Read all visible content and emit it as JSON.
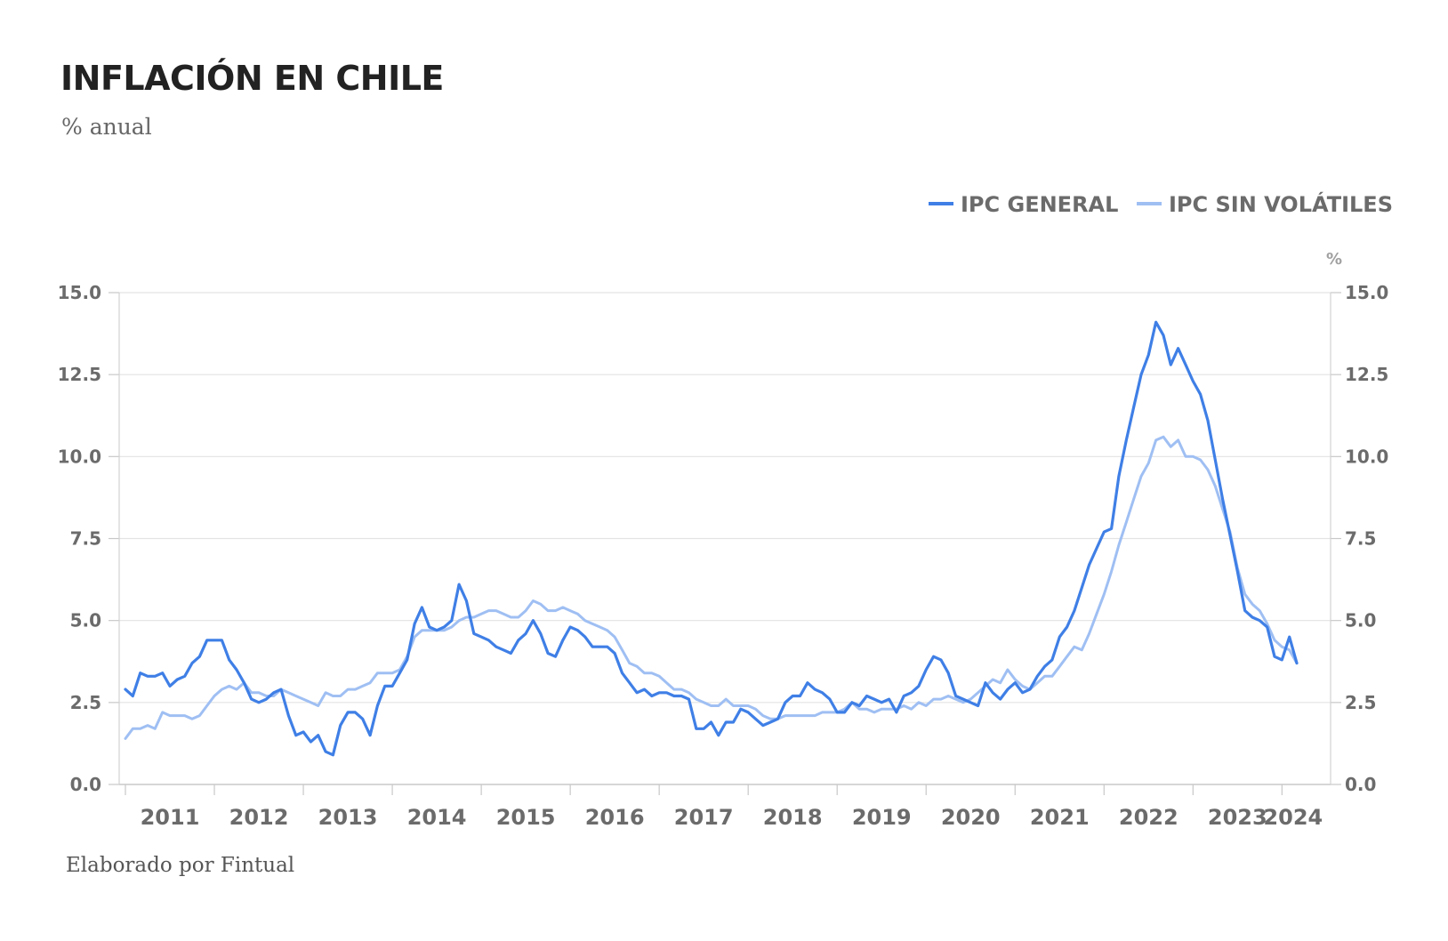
{
  "header": {
    "title": "INFLACIÓN EN CHILE",
    "subtitle": "% anual"
  },
  "footer": {
    "source": "Elaborado por Fintual"
  },
  "chart_data": {
    "type": "line",
    "title": "INFLACIÓN EN CHILE",
    "subtitle": "% anual",
    "ylabel": "%",
    "ylim": [
      0,
      15
    ],
    "y_ticks": [
      "0.0",
      "2.5",
      "5.0",
      "7.5",
      "10.0",
      "12.5",
      "15.0"
    ],
    "y_tick_values": [
      0,
      2.5,
      5,
      7.5,
      10,
      12.5,
      15
    ],
    "x_ticks": [
      "2011",
      "2012",
      "2013",
      "2014",
      "2015",
      "2016",
      "2017",
      "2018",
      "2019",
      "2020",
      "2021",
      "2022",
      "2023",
      "2024"
    ],
    "x_start": "2011-01",
    "x_end": "2024-03",
    "grid": true,
    "legend_position": "top-right",
    "series": [
      {
        "name": "IPC GENERAL",
        "color": "#3f7fe6",
        "values": [
          2.9,
          2.7,
          3.4,
          3.3,
          3.3,
          3.4,
          3.0,
          3.2,
          3.3,
          3.7,
          3.9,
          4.4,
          4.4,
          4.4,
          3.8,
          3.5,
          3.1,
          2.6,
          2.5,
          2.6,
          2.8,
          2.9,
          2.1,
          1.5,
          1.6,
          1.3,
          1.5,
          1.0,
          0.9,
          1.8,
          2.2,
          2.2,
          2.0,
          1.5,
          2.4,
          3.0,
          3.0,
          3.4,
          3.8,
          4.9,
          5.4,
          4.8,
          4.7,
          4.8,
          5.0,
          6.1,
          5.6,
          4.6,
          4.5,
          4.4,
          4.2,
          4.1,
          4.0,
          4.4,
          4.6,
          5.0,
          4.6,
          4.0,
          3.9,
          4.4,
          4.8,
          4.7,
          4.5,
          4.2,
          4.2,
          4.2,
          4.0,
          3.4,
          3.1,
          2.8,
          2.9,
          2.7,
          2.8,
          2.8,
          2.7,
          2.7,
          2.6,
          1.7,
          1.7,
          1.9,
          1.5,
          1.9,
          1.9,
          2.3,
          2.2,
          2.0,
          1.8,
          1.9,
          2.0,
          2.5,
          2.7,
          2.7,
          3.1,
          2.9,
          2.8,
          2.6,
          2.2,
          2.2,
          2.5,
          2.4,
          2.7,
          2.6,
          2.5,
          2.6,
          2.2,
          2.7,
          2.8,
          3.0,
          3.5,
          3.9,
          3.8,
          3.4,
          2.7,
          2.6,
          2.5,
          2.4,
          3.1,
          2.8,
          2.6,
          2.9,
          3.1,
          2.8,
          2.9,
          3.3,
          3.6,
          3.8,
          4.5,
          4.8,
          5.3,
          6.0,
          6.7,
          7.2,
          7.7,
          7.8,
          9.4,
          10.5,
          11.5,
          12.5,
          13.1,
          14.1,
          13.7,
          12.8,
          13.3,
          12.8,
          12.3,
          11.9,
          11.1,
          9.9,
          8.7,
          7.6,
          6.5,
          5.3,
          5.1,
          5.0,
          4.8,
          3.9,
          3.8,
          4.5,
          3.7
        ]
      },
      {
        "name": "IPC SIN VOLÁTILES",
        "color": "#9fbff3",
        "values": [
          1.4,
          1.7,
          1.7,
          1.8,
          1.7,
          2.2,
          2.1,
          2.1,
          2.1,
          2.0,
          2.1,
          2.4,
          2.7,
          2.9,
          3.0,
          2.9,
          3.1,
          2.8,
          2.8,
          2.7,
          2.7,
          2.9,
          2.8,
          2.7,
          2.6,
          2.5,
          2.4,
          2.8,
          2.7,
          2.7,
          2.9,
          2.9,
          3.0,
          3.1,
          3.4,
          3.4,
          3.4,
          3.5,
          3.9,
          4.5,
          4.7,
          4.7,
          4.7,
          4.7,
          4.8,
          5.0,
          5.1,
          5.1,
          5.2,
          5.3,
          5.3,
          5.2,
          5.1,
          5.1,
          5.3,
          5.6,
          5.5,
          5.3,
          5.3,
          5.4,
          5.3,
          5.2,
          5.0,
          4.9,
          4.8,
          4.7,
          4.5,
          4.1,
          3.7,
          3.6,
          3.4,
          3.4,
          3.3,
          3.1,
          2.9,
          2.9,
          2.8,
          2.6,
          2.5,
          2.4,
          2.4,
          2.6,
          2.4,
          2.4,
          2.4,
          2.3,
          2.1,
          2.0,
          2.0,
          2.1,
          2.1,
          2.1,
          2.1,
          2.1,
          2.2,
          2.2,
          2.2,
          2.3,
          2.5,
          2.3,
          2.3,
          2.2,
          2.3,
          2.3,
          2.3,
          2.4,
          2.3,
          2.5,
          2.4,
          2.6,
          2.6,
          2.7,
          2.6,
          2.5,
          2.6,
          2.8,
          3.0,
          3.2,
          3.1,
          3.5,
          3.2,
          3.0,
          2.9,
          3.1,
          3.3,
          3.3,
          3.6,
          3.9,
          4.2,
          4.1,
          4.6,
          5.2,
          5.8,
          6.5,
          7.3,
          8.0,
          8.7,
          9.4,
          9.8,
          10.5,
          10.6,
          10.3,
          10.5,
          10.0,
          10.0,
          9.9,
          9.6,
          9.1,
          8.4,
          7.7,
          6.6,
          5.8,
          5.5,
          5.3,
          4.9,
          4.4,
          4.2,
          4.1,
          3.7
        ]
      }
    ]
  }
}
